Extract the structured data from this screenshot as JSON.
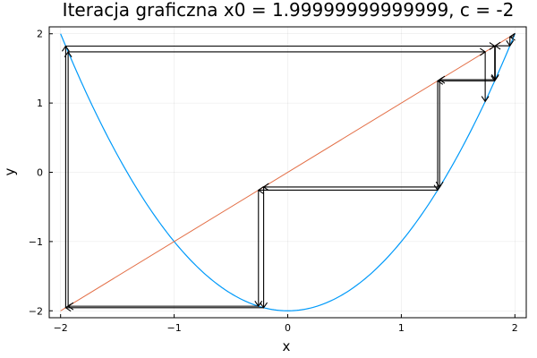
{
  "chart_data": {
    "type": "line",
    "title": "Iteracja graficzna x0 = 1.99999999999999, c = -2",
    "xlabel": "x",
    "ylabel": "y",
    "xlim": [
      -2.1,
      2.1
    ],
    "ylim": [
      -2.1,
      2.1
    ],
    "xticks": [
      -2,
      -1,
      0,
      1,
      2
    ],
    "xtick_labels": [
      "−2",
      "−1",
      "0",
      "1",
      "2"
    ],
    "yticks": [
      -2,
      -1,
      0,
      1,
      2
    ],
    "ytick_labels": [
      "−2",
      "−1",
      "0",
      "1",
      "2"
    ],
    "grid": true,
    "legend": "none",
    "x0": 1.99999999999999,
    "c": -2,
    "series": [
      {
        "kind": "curve",
        "function": "x^2 + c",
        "x_range": [
          -2,
          2
        ],
        "color": "#009AFA"
      },
      {
        "kind": "line",
        "function": "y = x",
        "x_range": [
          -2,
          2
        ],
        "color": "#E36F47"
      },
      {
        "kind": "cobweb",
        "color": "#000000",
        "arrows": true,
        "iterations": 30
      }
    ]
  }
}
